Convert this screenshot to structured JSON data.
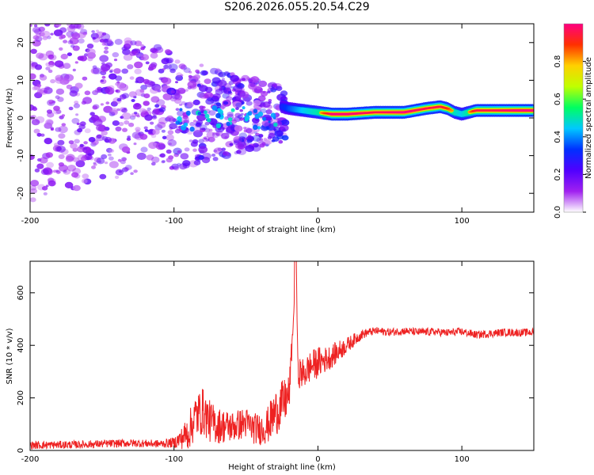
{
  "title": "S206.2026.055.20.54.C29",
  "chart_data": [
    {
      "type": "heatmap",
      "title": "S206.2026.055.20.54.C29",
      "xlabel": "Height of straight line (km)",
      "ylabel": "Frequency (Hz)",
      "xlim": [
        -200,
        150
      ],
      "ylim": [
        -25,
        25
      ],
      "x_ticks": [
        -200,
        -100,
        0,
        100
      ],
      "y_ticks": [
        -20,
        -10,
        0,
        10,
        20
      ],
      "colorbar": {
        "label": "Normalized spectral amplitude",
        "range": [
          0,
          1
        ],
        "ticks": [
          "0.0",
          "0.2",
          "0.4",
          "0.6",
          "0.8"
        ],
        "colors": [
          "#ffffff",
          "#a020f0",
          "#5000ff",
          "#0030ff",
          "#00c8ff",
          "#00ff60",
          "#c0ff00",
          "#ffd000",
          "#ff3000",
          "#ff0080"
        ]
      },
      "series": [
        {
          "name": "signal ridge (dominant frequency, Hz)",
          "x": [
            -25,
            -20,
            -10,
            0,
            10,
            20,
            40,
            60,
            75,
            85,
            90,
            95,
            100,
            105,
            110,
            120,
            140,
            150
          ],
          "values": [
            3,
            2.5,
            2,
            1.5,
            1,
            1,
            1.5,
            1.5,
            2.5,
            3,
            2.5,
            1.5,
            1,
            1.5,
            2,
            2,
            2,
            2
          ],
          "amplitude": [
            0.3,
            0.4,
            0.6,
            0.7,
            0.95,
            0.95,
            0.9,
            0.95,
            0.9,
            0.9,
            0.85,
            0.7,
            0.6,
            0.75,
            0.9,
            0.9,
            0.95,
            0.95
          ]
        },
        {
          "name": "diffuse noise cloud",
          "x_range": [
            -200,
            -22
          ],
          "frequency_range": [
            -25,
            25
          ],
          "amplitude_range": [
            0.0,
            0.3
          ]
        }
      ]
    },
    {
      "type": "line",
      "xlabel": "Height of straight line (km)",
      "ylabel": "SNR (10 * v/v)",
      "xlim": [
        -200,
        150
      ],
      "ylim": [
        0,
        720
      ],
      "x_ticks": [
        -200,
        -100,
        0,
        100
      ],
      "y_ticks": [
        0,
        200,
        400,
        600
      ],
      "series": [
        {
          "name": "SNR",
          "color": "#ee2222",
          "x": [
            -200,
            -170,
            -150,
            -130,
            -110,
            -100,
            -95,
            -90,
            -85,
            -80,
            -75,
            -70,
            -60,
            -50,
            -45,
            -40,
            -35,
            -30,
            -25,
            -20,
            -16,
            -15,
            -14,
            -10,
            -5,
            0,
            5,
            10,
            15,
            20,
            25,
            30,
            35,
            40,
            50,
            60,
            70,
            80,
            90,
            100,
            110,
            120,
            130,
            140,
            150
          ],
          "values": [
            20,
            22,
            25,
            28,
            25,
            30,
            45,
            70,
            130,
            150,
            110,
            95,
            90,
            105,
            85,
            80,
            95,
            140,
            175,
            210,
            600,
            720,
            300,
            290,
            320,
            335,
            345,
            360,
            380,
            400,
            420,
            440,
            450,
            455,
            450,
            455,
            450,
            452,
            448,
            452,
            440,
            445,
            450,
            448,
            450
          ],
          "noise_amplitude": [
            15,
            15,
            15,
            15,
            15,
            20,
            40,
            70,
            90,
            90,
            80,
            70,
            60,
            60,
            60,
            60,
            70,
            90,
            90,
            80,
            0,
            0,
            60,
            60,
            60,
            60,
            50,
            45,
            40,
            30,
            25,
            20,
            15,
            15,
            15,
            15,
            15,
            15,
            15,
            15,
            15,
            15,
            15,
            15,
            15
          ]
        }
      ]
    }
  ]
}
